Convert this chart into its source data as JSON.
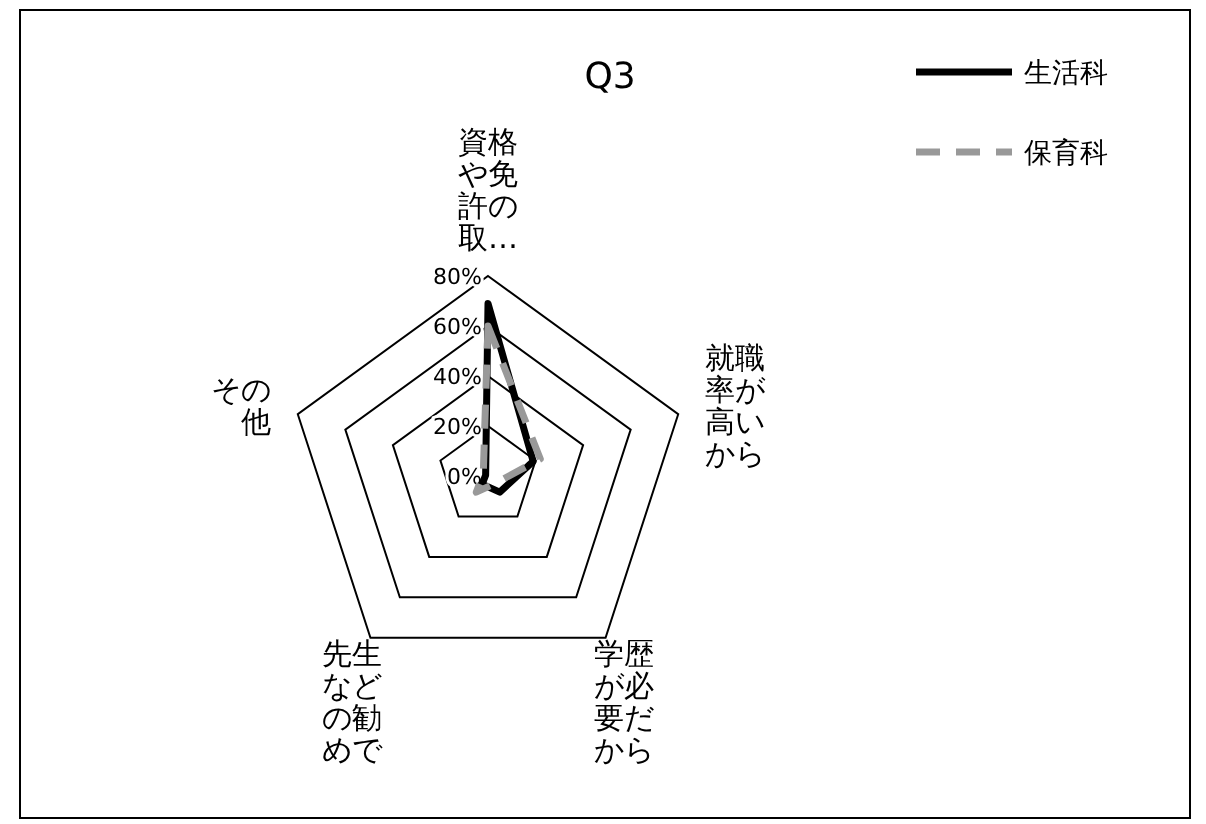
{
  "chart_data": {
    "type": "radar",
    "title": "Q3",
    "categories": [
      "資格や免許の取…",
      "就職率が高いから",
      "学歴が必要だから",
      "先生などの勧めで",
      "その他"
    ],
    "series": [
      {
        "name": "生活科",
        "color": "#000000",
        "line_style": "solid",
        "values": [
          69,
          19,
          8,
          4,
          1
        ]
      },
      {
        "name": "保育科",
        "color": "#999999",
        "line_style": "dashed",
        "values": [
          60,
          22,
          4,
          8,
          2
        ]
      }
    ],
    "ylim": [
      0,
      80
    ],
    "yticks": [
      {
        "value": 0,
        "label": "0%"
      },
      {
        "value": 20,
        "label": "20%"
      },
      {
        "value": 40,
        "label": "40%"
      },
      {
        "value": 60,
        "label": "60%"
      },
      {
        "value": 80,
        "label": "80%"
      }
    ],
    "grid": true,
    "legend": "top right"
  }
}
